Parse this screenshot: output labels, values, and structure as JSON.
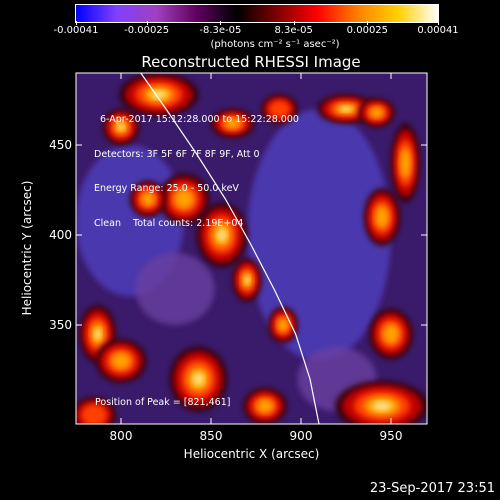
{
  "colorbar": {
    "ticks": [
      "-0.00041",
      "-0.00025",
      "-8.3e-05",
      "8.3e-05",
      "0.00025",
      "0.00041"
    ],
    "tick_values": [
      -0.00041,
      -0.00025,
      -8.3e-05,
      8.3e-05,
      0.00025,
      0.00041
    ],
    "units": "(photons cm⁻² s⁻¹ asec⁻²)",
    "colors": [
      "#0000ff",
      "#8040ff",
      "#a040c0",
      "#600060",
      "#000000",
      "#800000",
      "#ff0000",
      "#ff8000",
      "#ffd000",
      "#ffffff"
    ]
  },
  "annotations": {
    "time_range": "6-Apr-2017 15:12:28.000 to 15:22:28.000",
    "detectors": "Detectors: 3F 5F 6F 7F 8F 9F, Att 0",
    "energy": "Energy Range: 25.0 - 50.0 keV",
    "clean": "Clean    Total counts: 2.19E+04",
    "peak": "Position of Peak = [821,461]"
  },
  "footer": {
    "timestamp": "23-Sep-2017 23:51"
  },
  "chart_data": {
    "type": "heatmap",
    "title": "Reconstructed RHESSI Image",
    "xlabel": "Heliocentric X (arcsec)",
    "ylabel": "Heliocentric Y (arcsec)",
    "xlim": [
      775,
      970
    ],
    "ylim": [
      295,
      490
    ],
    "xticks": [
      800,
      850,
      900,
      950
    ],
    "yticks": [
      350,
      400,
      450
    ],
    "grid": false,
    "peak_position": [
      821,
      461
    ],
    "limb_curve": {
      "x": [
        811,
        825,
        842,
        858,
        872,
        885,
        897,
        905,
        910
      ],
      "y": [
        490,
        470,
        445,
        420,
        395,
        370,
        345,
        320,
        295
      ]
    },
    "bright_regions": [
      {
        "x": 821,
        "y": 478,
        "w": 22,
        "h": 12,
        "level": 1.0
      },
      {
        "x": 800,
        "y": 460,
        "w": 10,
        "h": 10,
        "level": 0.8
      },
      {
        "x": 862,
        "y": 462,
        "w": 12,
        "h": 8,
        "level": 0.7
      },
      {
        "x": 888,
        "y": 470,
        "w": 10,
        "h": 8,
        "level": 0.5
      },
      {
        "x": 925,
        "y": 470,
        "w": 16,
        "h": 8,
        "level": 0.85
      },
      {
        "x": 942,
        "y": 468,
        "w": 10,
        "h": 8,
        "level": 0.7
      },
      {
        "x": 958,
        "y": 440,
        "w": 8,
        "h": 22,
        "level": 0.75
      },
      {
        "x": 856,
        "y": 400,
        "w": 14,
        "h": 18,
        "level": 0.9
      },
      {
        "x": 870,
        "y": 375,
        "w": 8,
        "h": 12,
        "level": 0.8
      },
      {
        "x": 835,
        "y": 420,
        "w": 14,
        "h": 14,
        "level": 0.65
      },
      {
        "x": 815,
        "y": 420,
        "w": 10,
        "h": 10,
        "level": 0.6
      },
      {
        "x": 787,
        "y": 345,
        "w": 10,
        "h": 16,
        "level": 0.9
      },
      {
        "x": 800,
        "y": 330,
        "w": 14,
        "h": 12,
        "level": 0.7
      },
      {
        "x": 843,
        "y": 320,
        "w": 16,
        "h": 18,
        "level": 0.95
      },
      {
        "x": 890,
        "y": 350,
        "w": 8,
        "h": 10,
        "level": 0.6
      },
      {
        "x": 945,
        "y": 410,
        "w": 10,
        "h": 16,
        "level": 0.65
      },
      {
        "x": 950,
        "y": 345,
        "w": 12,
        "h": 14,
        "level": 0.7
      },
      {
        "x": 945,
        "y": 305,
        "w": 26,
        "h": 14,
        "level": 0.9
      },
      {
        "x": 785,
        "y": 300,
        "w": 12,
        "h": 10,
        "level": 0.5
      },
      {
        "x": 880,
        "y": 305,
        "w": 12,
        "h": 10,
        "level": 0.55
      }
    ],
    "dark_regions": [
      {
        "x": 805,
        "y": 408,
        "w": 30,
        "h": 42,
        "level": -0.8
      },
      {
        "x": 910,
        "y": 400,
        "w": 40,
        "h": 70,
        "level": -0.7
      },
      {
        "x": 830,
        "y": 370,
        "w": 22,
        "h": 20,
        "level": -0.45
      },
      {
        "x": 920,
        "y": 320,
        "w": 22,
        "h": 18,
        "level": -0.5
      }
    ]
  }
}
